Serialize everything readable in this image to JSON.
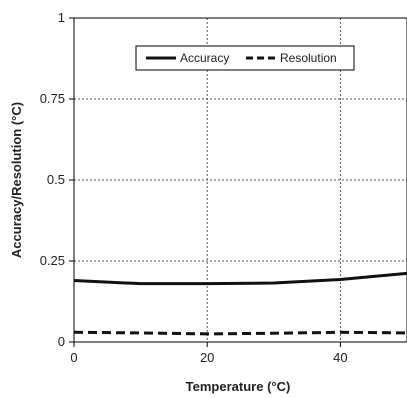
{
  "chart_data": {
    "type": "line",
    "xlabel": "Temperature (°C)",
    "ylabel": "Accuracy/Resolution (°C)",
    "xlim": [
      0,
      50
    ],
    "ylim": [
      0,
      1
    ],
    "x_ticks": [
      0,
      20,
      40
    ],
    "x_tick_labels": [
      "0",
      "20",
      "40"
    ],
    "y_ticks": [
      0,
      0.25,
      0.5,
      0.75,
      1
    ],
    "y_tick_labels": [
      "0",
      "0.25",
      "0.5",
      "0.75",
      "1"
    ],
    "grid": true,
    "legend_position": "top-right",
    "x": [
      0,
      10,
      20,
      30,
      40,
      50
    ],
    "series": [
      {
        "name": "Accuracy",
        "style": "solid",
        "color": "#111111",
        "values": [
          0.19,
          0.18,
          0.18,
          0.182,
          0.193,
          0.212
        ]
      },
      {
        "name": "Resolution",
        "style": "dashed",
        "color": "#111111",
        "values": [
          0.03,
          0.028,
          0.025,
          0.027,
          0.03,
          0.028
        ]
      }
    ]
  }
}
